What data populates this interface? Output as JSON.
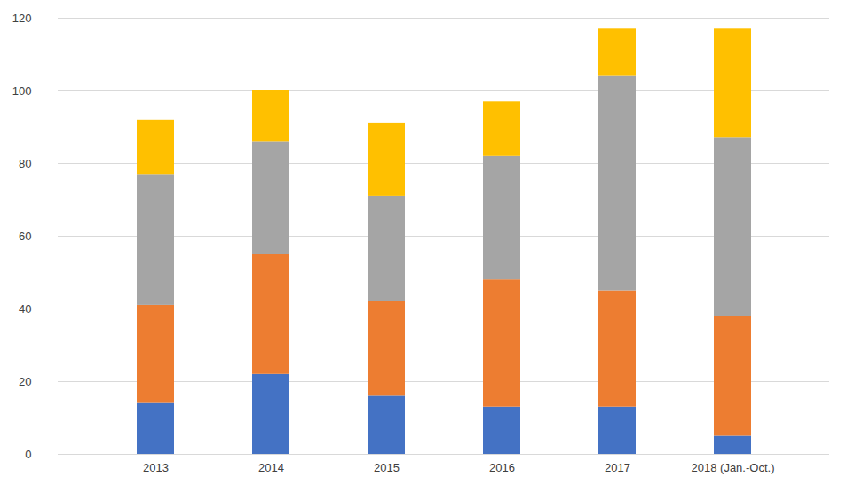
{
  "chart_data": {
    "type": "bar",
    "stacked": true,
    "grid": true,
    "categories": [
      "2013",
      "2014",
      "2015",
      "2016",
      "2017",
      "2018 (Jan.-Oct.)"
    ],
    "series": [
      {
        "color": "#4472c4",
        "values": [
          14,
          22,
          16,
          13,
          13,
          5
        ]
      },
      {
        "color": "#ed7d31",
        "values": [
          27,
          33,
          26,
          35,
          32,
          33
        ]
      },
      {
        "color": "#a5a5a5",
        "values": [
          36,
          31,
          29,
          34,
          59,
          49
        ]
      },
      {
        "color": "#ffc000",
        "values": [
          15,
          14,
          20,
          15,
          13,
          30
        ]
      }
    ],
    "ylim": [
      0,
      120
    ],
    "yticks": [
      0,
      20,
      40,
      60,
      80,
      100,
      120
    ]
  }
}
